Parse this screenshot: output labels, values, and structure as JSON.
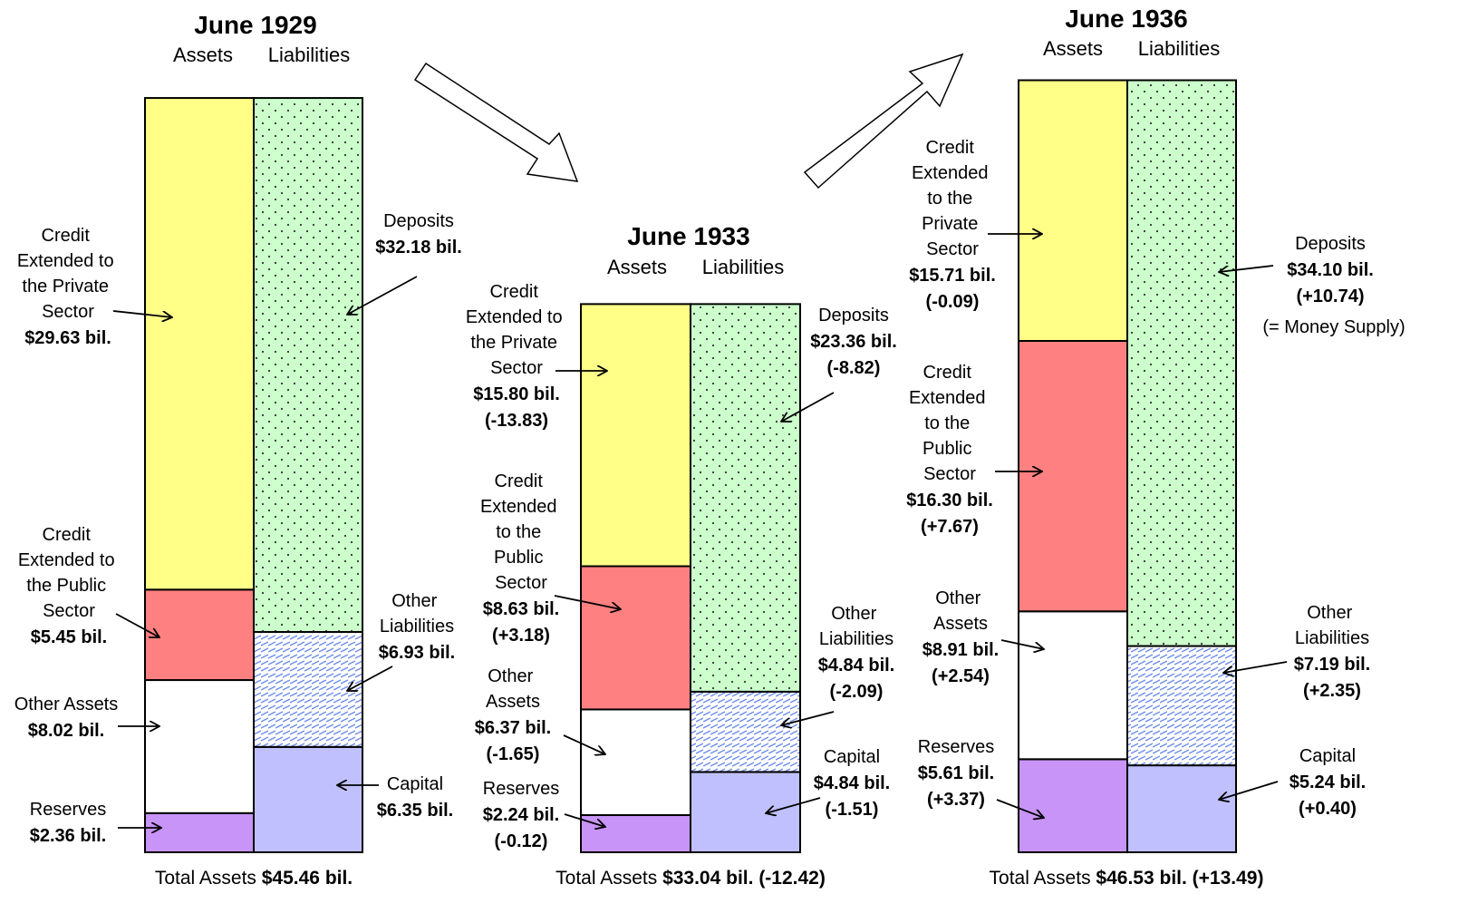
{
  "chart_data": [
    {
      "type": "balance_sheet",
      "title": "June 1929",
      "annotation": null,
      "stacks": [
        {
          "name": "Assets",
          "segments": [
            {
              "name": "Reserves",
              "color": "#c894f8",
              "value": 2.36,
              "value_label": "$2.36 bil."
            },
            {
              "name": "Other Assets",
              "color": "#ffffff",
              "value": 8.02,
              "value_label": "$8.02 bil."
            },
            {
              "name": "Credit Extended to the Public Sector",
              "color": "#ff8080",
              "value": 5.45,
              "value_label": "$5.45 bil."
            },
            {
              "name": "Credit Extended to the Private Sector",
              "color": "#ffff88",
              "value": 29.63,
              "value_label": "$29.63 bil."
            }
          ]
        },
        {
          "name": "Liabilities",
          "segments": [
            {
              "name": "Capital",
              "color": "#c0c0ff",
              "value": 6.35,
              "value_label": "$6.35 bil."
            },
            {
              "name": "Other Liabilities",
              "color": "#8da8f0",
              "value": 6.93,
              "value_label": "$6.93 bil."
            },
            {
              "name": "Deposits",
              "color": "#ccffcc",
              "value": 32.18,
              "value_label": "$32.18 bil."
            }
          ]
        }
      ],
      "total": {
        "label": "Total Assets",
        "value": 45.46,
        "value_label": "$45.46 bil."
      }
    },
    {
      "type": "balance_sheet",
      "title": "June 1933",
      "annotation": null,
      "stacks": [
        {
          "name": "Assets",
          "segments": [
            {
              "name": "Reserves",
              "color": "#c894f8",
              "value": 2.24,
              "value_label": "$2.24 bil.",
              "change": -0.12,
              "change_label": "(-0.12)"
            },
            {
              "name": "Other Assets",
              "color": "#ffffff",
              "value": 6.37,
              "value_label": "$6.37 bil.",
              "change": -1.65,
              "change_label": "(-1.65)"
            },
            {
              "name": "Credit Extended to the Public Sector",
              "color": "#ff8080",
              "value": 8.63,
              "value_label": "$8.63 bil.",
              "change": 3.18,
              "change_label": "(+3.18)"
            },
            {
              "name": "Credit Extended to the Private Sector",
              "color": "#ffff88",
              "value": 15.8,
              "value_label": "$15.80 bil.",
              "change": -13.83,
              "change_label": "(-13.83)"
            }
          ]
        },
        {
          "name": "Liabilities",
          "segments": [
            {
              "name": "Capital",
              "color": "#c0c0ff",
              "value": 4.84,
              "value_label": "$4.84 bil.",
              "change": -1.51,
              "change_label": "(-1.51)"
            },
            {
              "name": "Other Liabilities",
              "color": "#8da8f0",
              "value": 4.84,
              "value_label": "$4.84 bil.",
              "change": -2.09,
              "change_label": "(-2.09)"
            },
            {
              "name": "Deposits",
              "color": "#ccffcc",
              "value": 23.36,
              "value_label": "$23.36 bil.",
              "change": -8.82,
              "change_label": "(-8.82)"
            }
          ]
        }
      ],
      "total": {
        "label": "Total Assets",
        "value": 33.04,
        "value_label": "$33.04 bil.",
        "change": -12.42,
        "change_label": "(-12.42)"
      }
    },
    {
      "type": "balance_sheet",
      "title": "June 1936",
      "annotation": "(= Money Supply)",
      "stacks": [
        {
          "name": "Assets",
          "segments": [
            {
              "name": "Reserves",
              "color": "#c894f8",
              "value": 5.61,
              "value_label": "$5.61 bil.",
              "change": 3.37,
              "change_label": "(+3.37)"
            },
            {
              "name": "Other Assets",
              "color": "#ffffff",
              "value": 8.91,
              "value_label": "$8.91 bil.",
              "change": 2.54,
              "change_label": "(+2.54)"
            },
            {
              "name": "Credit Extended to the Public Sector",
              "color": "#ff8080",
              "value": 16.3,
              "value_label": "$16.30 bil.",
              "change": 7.67,
              "change_label": "(+7.67)"
            },
            {
              "name": "Credit Extended to the Private Sector",
              "color": "#ffff88",
              "value": 15.71,
              "value_label": "$15.71 bil.",
              "change": -0.09,
              "change_label": "(-0.09)"
            }
          ]
        },
        {
          "name": "Liabilities",
          "segments": [
            {
              "name": "Capital",
              "color": "#c0c0ff",
              "value": 5.24,
              "value_label": "$5.24 bil.",
              "change": 0.4,
              "change_label": "(+0.40)"
            },
            {
              "name": "Other Liabilities",
              "color": "#8da8f0",
              "value": 7.19,
              "value_label": "$7.19 bil.",
              "change": 2.35,
              "change_label": "(+2.35)"
            },
            {
              "name": "Deposits",
              "color": "#ccffcc",
              "value": 34.1,
              "value_label": "$34.10 bil.",
              "change": 10.74,
              "change_label": "(+10.74)"
            }
          ]
        }
      ],
      "total": {
        "label": "Total Assets",
        "value": 46.53,
        "value_label": "$46.53 bil.",
        "change": 13.49,
        "change_label": "(+13.49)"
      }
    }
  ]
}
